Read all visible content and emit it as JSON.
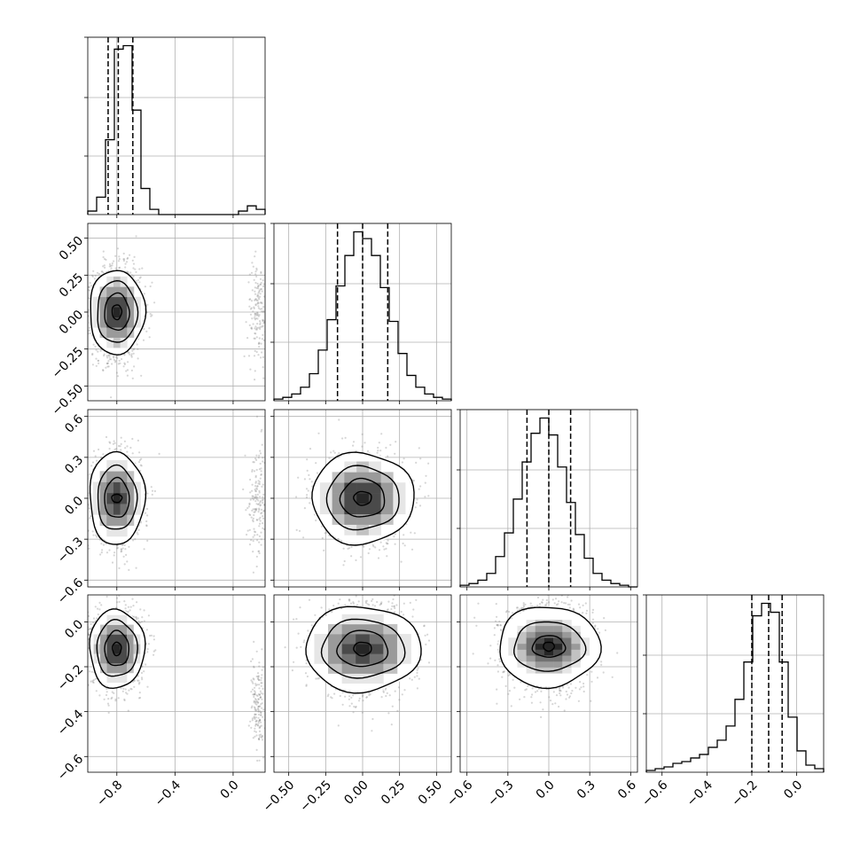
{
  "chart_data": {
    "type": "corner",
    "parameters": 4,
    "grid": true,
    "quantile_lines": [
      0.16,
      0.5,
      0.84
    ],
    "density_colormap": "greys",
    "ranges": [
      [
        -1.0,
        0.22
      ],
      [
        -0.6,
        0.6
      ],
      [
        -0.65,
        0.65
      ],
      [
        -0.67,
        0.12
      ]
    ],
    "x_ticks": [
      {
        "values": [
          -0.8,
          -0.4,
          0.0
        ],
        "labels": [
          "−0.8",
          "−0.4",
          "0.0"
        ]
      },
      {
        "values": [
          -0.5,
          -0.25,
          0.0,
          0.25,
          0.5
        ],
        "labels": [
          "−0.50",
          "−0.25",
          "0.00",
          "0.25",
          "0.50"
        ]
      },
      {
        "values": [
          -0.6,
          -0.3,
          0.0,
          0.3,
          0.6
        ],
        "labels": [
          "−0.6",
          "−0.3",
          "0.0",
          "0.3",
          "0.6"
        ]
      },
      {
        "values": [
          -0.6,
          -0.4,
          -0.2,
          0.0
        ],
        "labels": [
          "−0.6",
          "−0.4",
          "−0.2",
          "0.0"
        ]
      }
    ],
    "y_ticks": [
      null,
      {
        "values": [
          -0.5,
          -0.25,
          0.0,
          0.25,
          0.5
        ],
        "labels": [
          "−0.50",
          "−0.25",
          "0.00",
          "0.25",
          "0.50"
        ]
      },
      {
        "values": [
          -0.6,
          -0.3,
          0.0,
          0.3,
          0.6
        ],
        "labels": [
          "−0.6",
          "−0.3",
          "0.0",
          "0.3",
          "0.6"
        ]
      },
      {
        "values": [
          -0.6,
          -0.4,
          -0.2,
          0.0
        ],
        "labels": [
          "−0.6",
          "−0.4",
          "−0.2",
          "0.0"
        ]
      }
    ],
    "histograms": [
      {
        "bin_start": -1.0,
        "bin_width": 0.061,
        "counts": [
          2,
          10,
          43,
          95,
          97,
          60,
          15,
          3,
          0,
          0,
          0,
          0,
          0,
          0,
          0,
          0,
          0,
          2,
          5,
          3
        ],
        "quantiles": [
          -0.86,
          -0.79,
          -0.69
        ]
      },
      {
        "bin_start": -0.6,
        "bin_width": 0.06,
        "counts": [
          1,
          2,
          4,
          8,
          16,
          30,
          48,
          68,
          86,
          100,
          96,
          86,
          67,
          47,
          28,
          15,
          8,
          4,
          2,
          1
        ],
        "quantiles": [
          -0.17,
          0.0,
          0.17
        ]
      },
      {
        "bin_start": -0.65,
        "bin_width": 0.065,
        "counts": [
          1,
          2,
          4,
          8,
          18,
          32,
          52,
          74,
          91,
          100,
          90,
          71,
          50,
          31,
          17,
          8,
          4,
          2,
          1,
          0
        ],
        "quantiles": [
          -0.16,
          0.0,
          0.16
        ]
      },
      {
        "bin_start": -0.67,
        "bin_width": 0.0395,
        "counts": [
          1,
          2,
          3,
          5,
          6,
          8,
          10,
          14,
          18,
          26,
          41,
          62,
          88,
          95,
          90,
          62,
          31,
          12,
          4,
          2
        ],
        "quantiles": [
          -0.2,
          -0.125,
          -0.065
        ]
      }
    ],
    "panels": [
      {
        "row": 1,
        "col": 0,
        "modes": [
          {
            "cx": -0.8,
            "cy": 0.0,
            "sx": 0.07,
            "sy": 0.13,
            "weight": 0.93
          },
          {
            "cx": 0.17,
            "cy": 0.0,
            "sx": 0.03,
            "sy": 0.15,
            "weight": 0.07
          }
        ],
        "contours": [
          {
            "rx": 0.085,
            "ry": 0.125
          },
          {
            "rx": 0.138,
            "ry": 0.208
          },
          {
            "rx": 0.19,
            "ry": 0.285
          },
          {
            "rx": 0.033,
            "ry": 0.05
          }
        ]
      },
      {
        "row": 2,
        "col": 0,
        "modes": [
          {
            "cx": -0.8,
            "cy": 0.0,
            "sx": 0.07,
            "sy": 0.13,
            "weight": 0.93
          },
          {
            "cx": 0.17,
            "cy": 0.0,
            "sx": 0.03,
            "sy": 0.17,
            "weight": 0.07
          }
        ],
        "contours": [
          {
            "rx": 0.085,
            "ry": 0.145
          },
          {
            "rx": 0.135,
            "ry": 0.235
          },
          {
            "rx": 0.19,
            "ry": 0.34
          },
          {
            "rx": 0.035,
            "ry": 0.03
          }
        ]
      },
      {
        "row": 3,
        "col": 0,
        "modes": [
          {
            "cx": -0.8,
            "cy": -0.12,
            "sx": 0.07,
            "sy": 0.07,
            "weight": 0.93
          },
          {
            "cx": 0.17,
            "cy": -0.38,
            "sx": 0.02,
            "sy": 0.08,
            "weight": 0.07
          }
        ],
        "contours": [
          {
            "rx": 0.083,
            "ry": 0.078
          },
          {
            "rx": 0.14,
            "ry": 0.125
          },
          {
            "rx": 0.19,
            "ry": 0.175
          },
          {
            "rx": 0.03,
            "ry": 0.03
          }
        ]
      },
      {
        "row": 2,
        "col": 1,
        "modes": [
          {
            "cx": 0.0,
            "cy": 0.0,
            "sx": 0.12,
            "sy": 0.13,
            "weight": 1.0
          }
        ],
        "contours": [
          {
            "rx": 0.15,
            "ry": 0.14
          },
          {
            "rx": 0.245,
            "ry": 0.232
          },
          {
            "rx": 0.345,
            "ry": 0.335
          },
          {
            "rx": 0.06,
            "ry": 0.05
          }
        ]
      },
      {
        "row": 3,
        "col": 1,
        "modes": [
          {
            "cx": 0.0,
            "cy": -0.12,
            "sx": 0.13,
            "sy": 0.08,
            "weight": 1.0
          }
        ],
        "contours": [
          {
            "rx": 0.17,
            "ry": 0.08
          },
          {
            "rx": 0.28,
            "ry": 0.13
          },
          {
            "rx": 0.39,
            "ry": 0.19
          },
          {
            "rx": 0.06,
            "ry": 0.03
          }
        ]
      },
      {
        "row": 3,
        "col": 2,
        "modes": [
          {
            "cx": 0.0,
            "cy": -0.11,
            "sx": 0.13,
            "sy": 0.08,
            "weight": 1.0
          }
        ],
        "contours": [
          {
            "rx": 0.12,
            "ry": 0.048
          },
          {
            "rx": 0.26,
            "ry": 0.11
          },
          {
            "rx": 0.37,
            "ry": 0.18
          },
          {
            "rx": 0.04,
            "ry": 0.02
          }
        ]
      }
    ]
  }
}
